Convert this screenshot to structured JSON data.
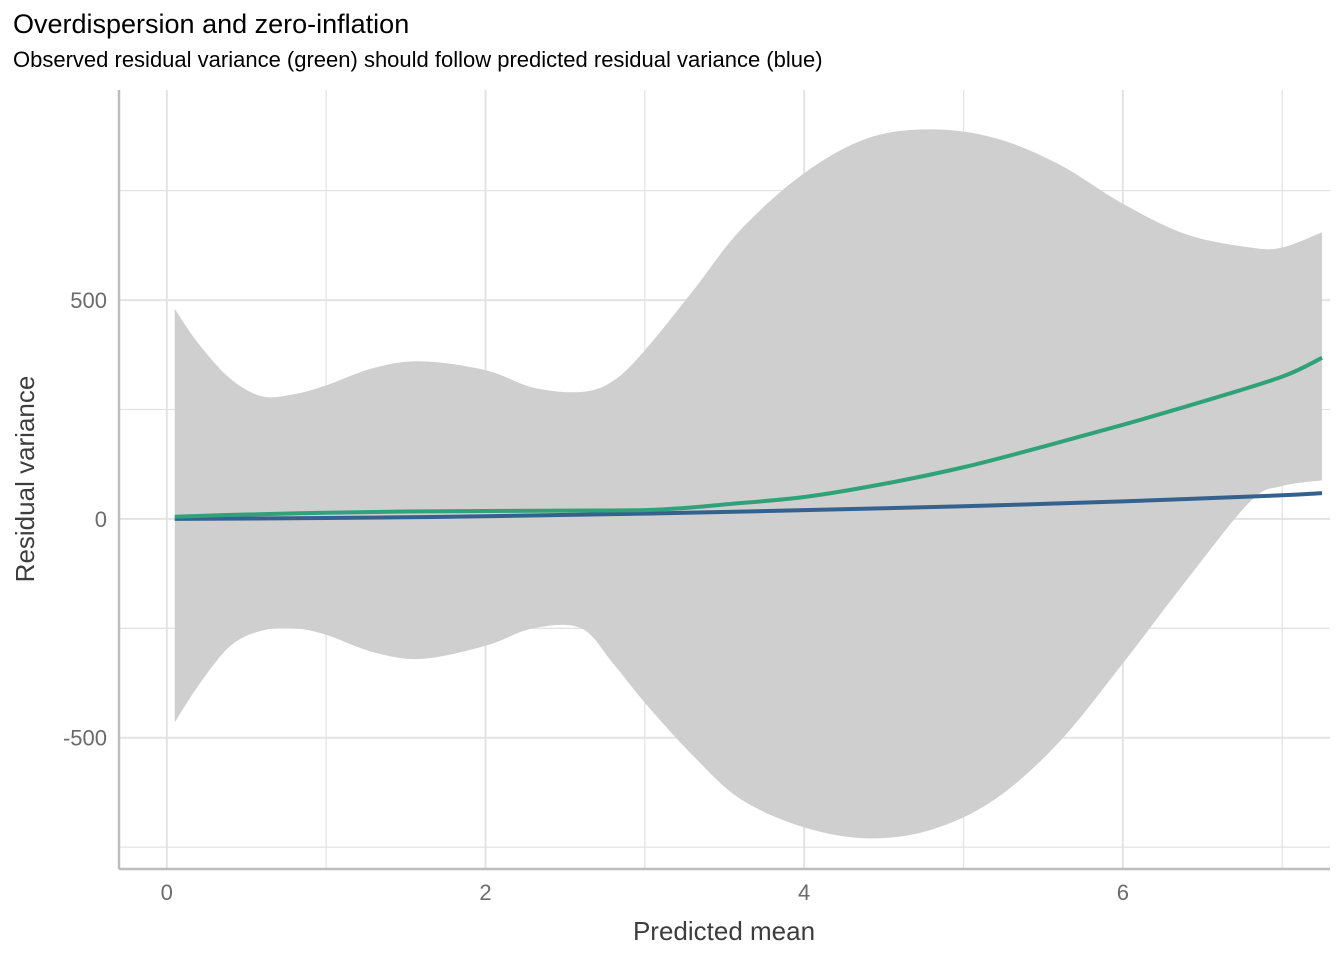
{
  "chart_data": {
    "type": "line",
    "title": "Overdispersion and zero-inflation",
    "subtitle": "Observed residual variance (green) should follow predicted residual variance (blue)",
    "xlabel": "Predicted mean",
    "ylabel": "Residual variance",
    "xlim": [
      -0.3,
      7.3
    ],
    "ylim": [
      -800,
      980
    ],
    "x_ticks": [
      0,
      2,
      4,
      6
    ],
    "x_minor": [
      1,
      3,
      5,
      7
    ],
    "y_ticks": [
      -500,
      0,
      500
    ],
    "y_minor": [
      -750,
      -250,
      250,
      750
    ],
    "grid": true,
    "colors": {
      "observed": "#2fa27a",
      "predicted": "#35618f",
      "ribbon": "#cfcfcf",
      "grid": "#e3e3e3",
      "axis": "#bdbdbd"
    },
    "series": [
      {
        "x": [
          0.05,
          0.5,
          1,
          1.5,
          2,
          2.5,
          3,
          3.25,
          3.5,
          4,
          4.5,
          5,
          5.5,
          6,
          6.5,
          7,
          7.25
        ],
        "y": [
          5,
          10,
          14,
          17,
          18,
          19,
          20,
          25,
          33,
          50,
          80,
          118,
          165,
          215,
          268,
          325,
          368
        ]
      },
      {
        "x": [
          0.05,
          1,
          2,
          3,
          4,
          5,
          6,
          7,
          7.25
        ],
        "y": [
          0.05,
          2,
          6,
          12,
          20,
          29,
          40,
          54,
          59
        ]
      }
    ],
    "ribbon": {
      "x": [
        0.05,
        0.2,
        0.4,
        0.6,
        0.8,
        1.0,
        1.3,
        1.6,
        2.0,
        2.3,
        2.6,
        2.8,
        3.0,
        3.3,
        3.6,
        4.0,
        4.4,
        4.8,
        5.2,
        5.6,
        6.0,
        6.4,
        6.8,
        7.0,
        7.25
      ],
      "upper": [
        480,
        400,
        320,
        280,
        285,
        305,
        345,
        360,
        340,
        300,
        290,
        315,
        385,
        520,
        660,
        790,
        870,
        890,
        870,
        810,
        720,
        650,
        620,
        620,
        655
      ],
      "lower": [
        -465,
        -380,
        -290,
        -255,
        -250,
        -265,
        -305,
        -320,
        -290,
        -250,
        -250,
        -330,
        -420,
        -540,
        -640,
        -705,
        -730,
        -710,
        -640,
        -510,
        -330,
        -140,
        40,
        75,
        88
      ]
    }
  }
}
